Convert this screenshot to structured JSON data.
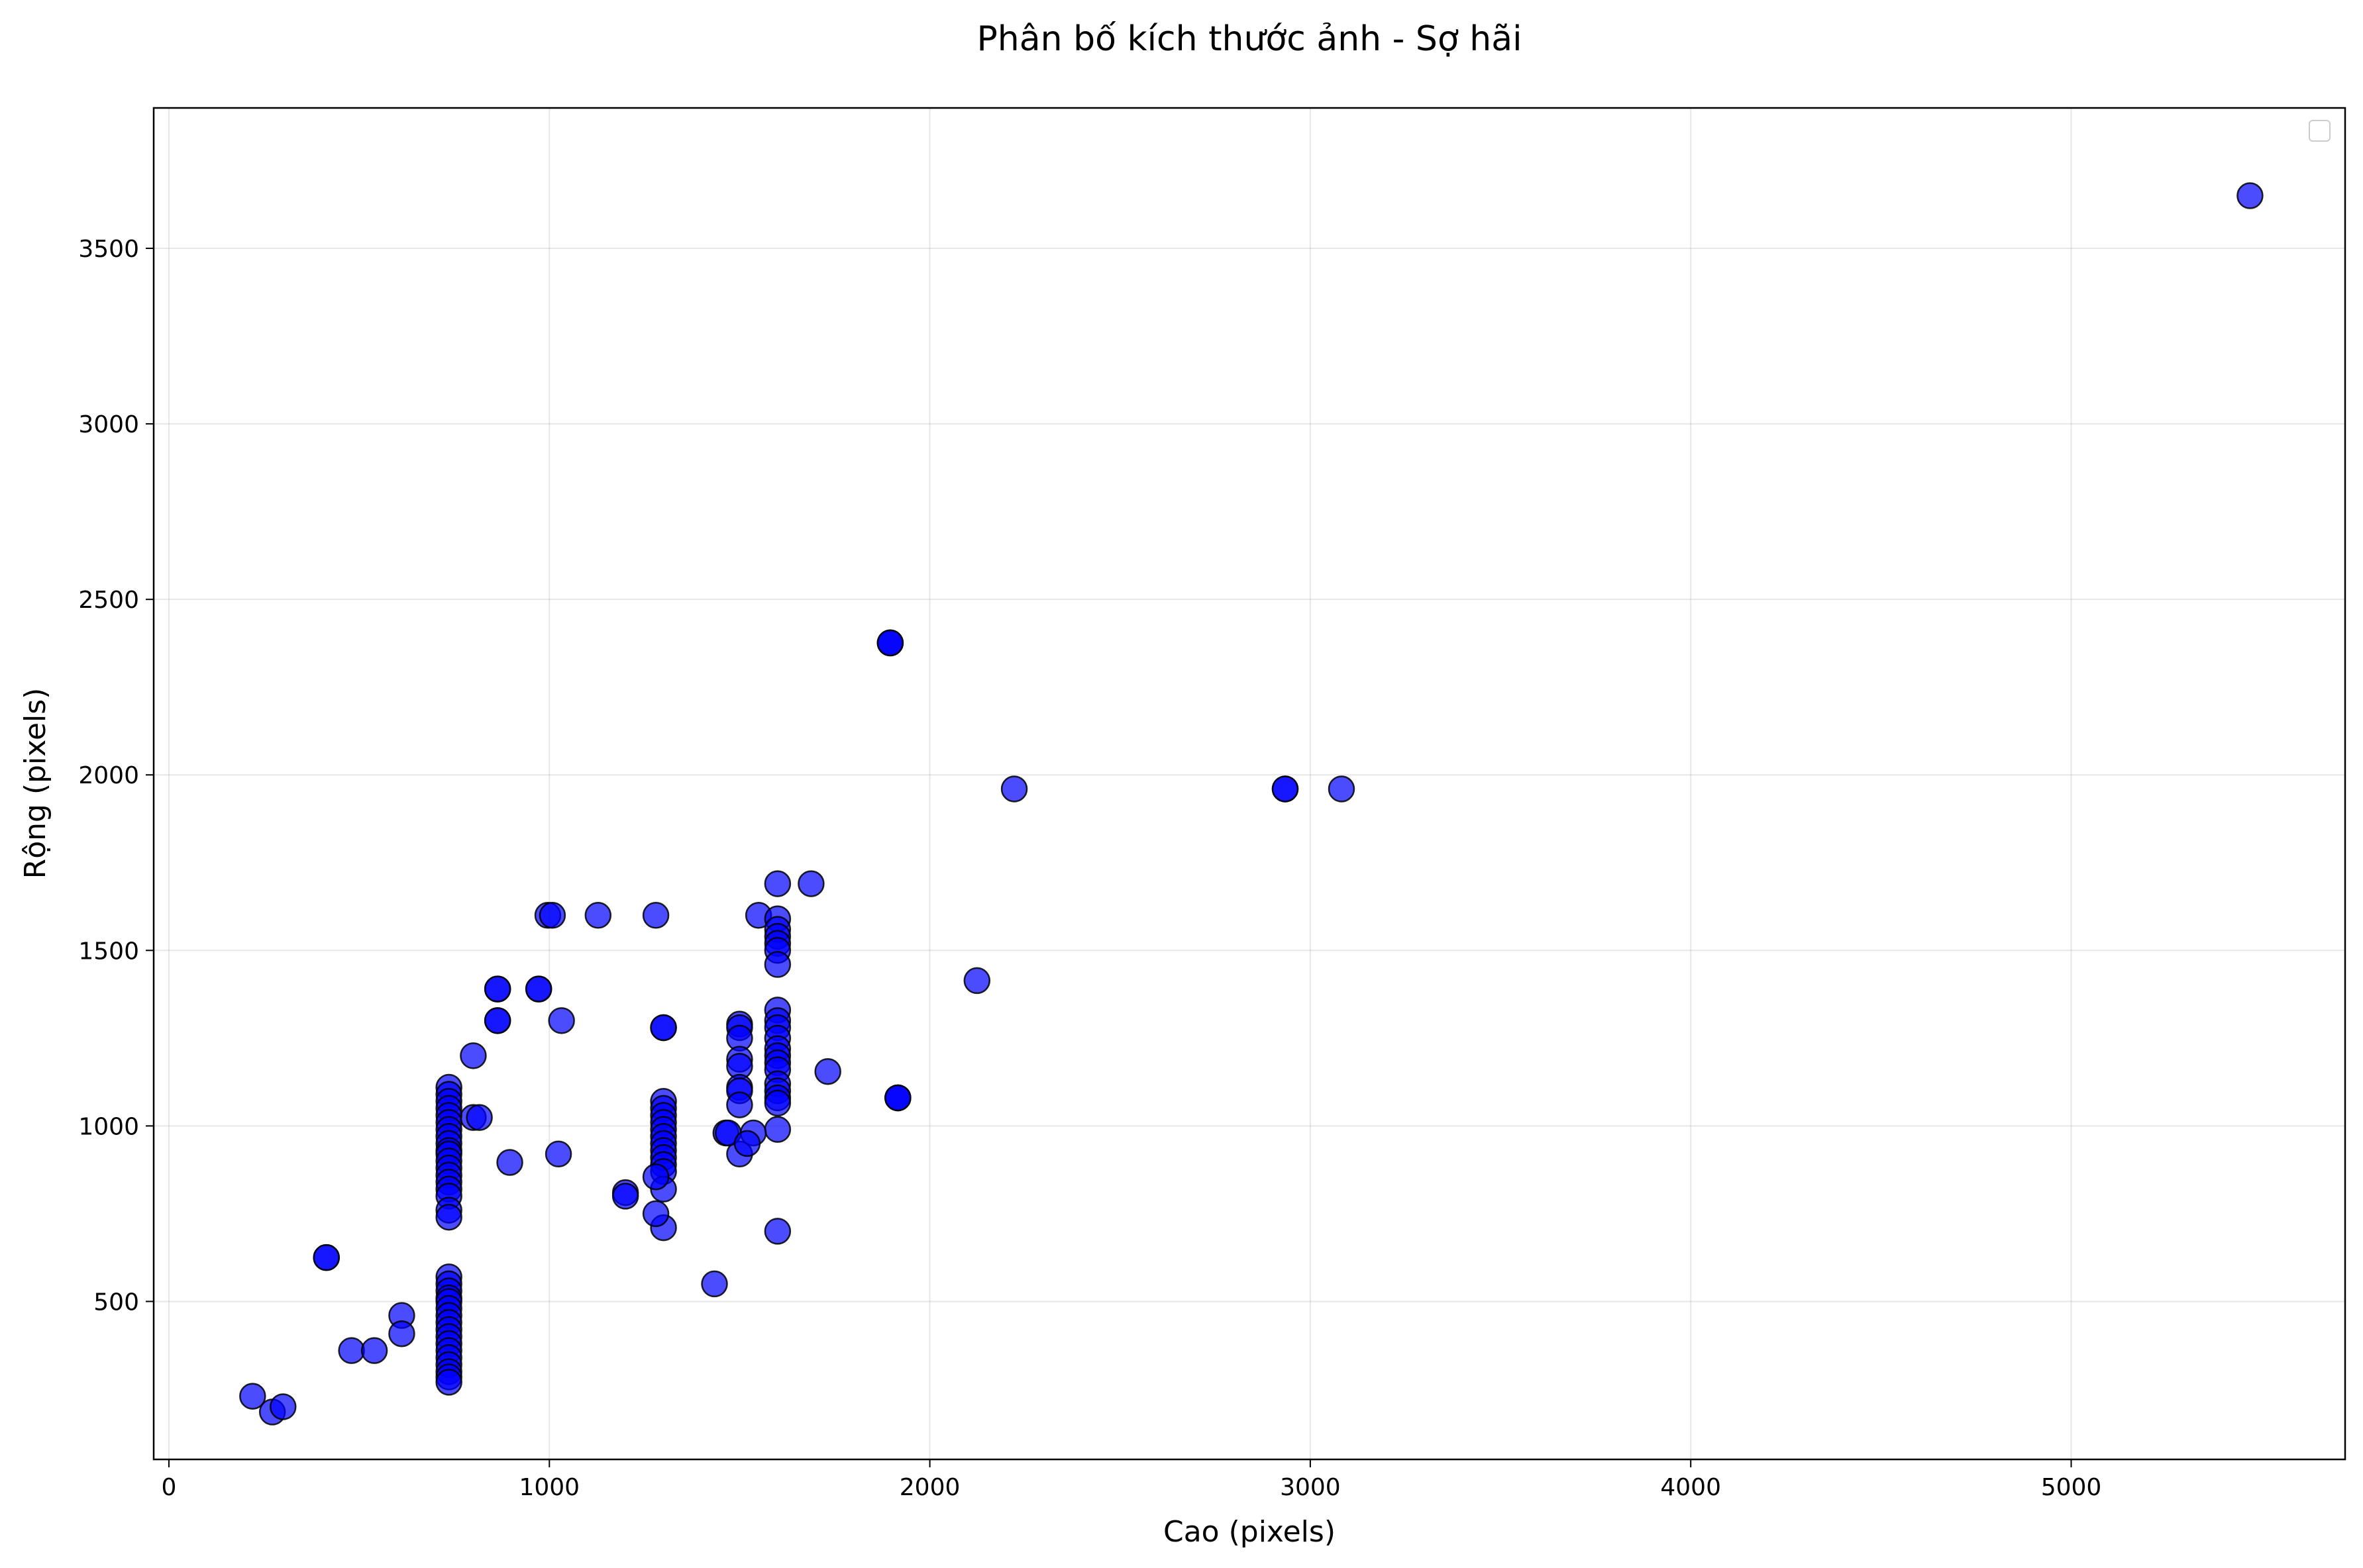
{
  "chart_data": {
    "type": "scatter",
    "title": "Phân bố kích thước ảnh - Sợ hãi",
    "xlabel": "Cao (pixels)",
    "ylabel": "Rộng (pixels)",
    "xlim": [
      -40,
      5720
    ],
    "ylim": [
      50,
      3900
    ],
    "xticks": [
      0,
      1000,
      2000,
      3000,
      4000,
      5000
    ],
    "yticks": [
      500,
      1000,
      1500,
      2000,
      2500,
      3000,
      3500
    ],
    "xtick_labels": [
      "0",
      "1000",
      "2000",
      "3000",
      "4000",
      "5000"
    ],
    "ytick_labels": [
      "500",
      "1000",
      "1500",
      "2000",
      "2500",
      "3000",
      "3500"
    ],
    "grid": true,
    "legend": {
      "location": "upper right",
      "entries": []
    },
    "colors": {
      "marker_fill": "#0000ff",
      "marker_alpha": 0.7,
      "marker_edge": "#000000"
    },
    "series": [
      {
        "points": [
          [
            5470,
            3650
          ],
          [
            1896,
            2376
          ],
          [
            1896,
            2376
          ],
          [
            1896,
            2376
          ],
          [
            2222,
            1960
          ],
          [
            2934,
            1960
          ],
          [
            2934,
            1960
          ],
          [
            3082,
            1960
          ],
          [
            2124,
            1414
          ],
          [
            1732,
            1155
          ],
          [
            1916,
            1080
          ],
          [
            1916,
            1080
          ],
          [
            1916,
            1080
          ],
          [
            1600,
            1690
          ],
          [
            1688,
            1690
          ],
          [
            996,
            1600
          ],
          [
            1008,
            1600
          ],
          [
            1128,
            1600
          ],
          [
            1280,
            1600
          ],
          [
            1550,
            1600
          ],
          [
            1600,
            1590
          ],
          [
            1600,
            1560
          ],
          [
            1600,
            1540
          ],
          [
            1600,
            1520
          ],
          [
            1600,
            1500
          ],
          [
            1600,
            1460
          ],
          [
            1600,
            1330
          ],
          [
            1600,
            1300
          ],
          [
            1600,
            1280
          ],
          [
            1600,
            1250
          ],
          [
            1600,
            1220
          ],
          [
            1600,
            1200
          ],
          [
            1600,
            1180
          ],
          [
            1600,
            1160
          ],
          [
            1600,
            1120
          ],
          [
            1600,
            1100
          ],
          [
            1600,
            1080
          ],
          [
            1600,
            1065
          ],
          [
            1600,
            990
          ],
          [
            1600,
            700
          ],
          [
            864,
            1390
          ],
          [
            864,
            1390
          ],
          [
            972,
            1390
          ],
          [
            972,
            1390
          ],
          [
            864,
            1300
          ],
          [
            864,
            1300
          ],
          [
            1032,
            1300
          ],
          [
            800,
            1200
          ],
          [
            1500,
            1290
          ],
          [
            1500,
            1280
          ],
          [
            1500,
            1250
          ],
          [
            1500,
            1190
          ],
          [
            1500,
            1170
          ],
          [
            1500,
            1110
          ],
          [
            1500,
            1100
          ],
          [
            1500,
            1060
          ],
          [
            1500,
            920
          ],
          [
            1464,
            980
          ],
          [
            1470,
            980
          ],
          [
            1536,
            980
          ],
          [
            1520,
            950
          ],
          [
            1300,
            1280
          ],
          [
            1300,
            1280
          ],
          [
            1300,
            1070
          ],
          [
            1300,
            1050
          ],
          [
            1300,
            1030
          ],
          [
            1300,
            1010
          ],
          [
            1300,
            990
          ],
          [
            1300,
            970
          ],
          [
            1300,
            950
          ],
          [
            1300,
            930
          ],
          [
            1300,
            910
          ],
          [
            1300,
            890
          ],
          [
            1300,
            870
          ],
          [
            1300,
            820
          ],
          [
            1300,
            710
          ],
          [
            1280,
            855
          ],
          [
            1280,
            750
          ],
          [
            1434,
            550
          ],
          [
            1200,
            810
          ],
          [
            1200,
            800
          ],
          [
            1024,
            920
          ],
          [
            896,
            896
          ],
          [
            800,
            1024
          ],
          [
            816,
            1024
          ],
          [
            736,
            1110
          ],
          [
            736,
            1090
          ],
          [
            736,
            1070
          ],
          [
            736,
            1050
          ],
          [
            736,
            1030
          ],
          [
            736,
            1010
          ],
          [
            736,
            990
          ],
          [
            736,
            970
          ],
          [
            736,
            950
          ],
          [
            736,
            930
          ],
          [
            736,
            920
          ],
          [
            736,
            900
          ],
          [
            736,
            880
          ],
          [
            736,
            860
          ],
          [
            736,
            840
          ],
          [
            736,
            820
          ],
          [
            736,
            800
          ],
          [
            736,
            760
          ],
          [
            736,
            740
          ],
          [
            736,
            570
          ],
          [
            736,
            550
          ],
          [
            736,
            530
          ],
          [
            736,
            510
          ],
          [
            736,
            500
          ],
          [
            736,
            480
          ],
          [
            736,
            460
          ],
          [
            736,
            440
          ],
          [
            736,
            420
          ],
          [
            736,
            400
          ],
          [
            736,
            380
          ],
          [
            736,
            360
          ],
          [
            736,
            340
          ],
          [
            736,
            320
          ],
          [
            736,
            300
          ],
          [
            736,
            285
          ],
          [
            736,
            270
          ],
          [
            414,
            625
          ],
          [
            414,
            625
          ],
          [
            612,
            460
          ],
          [
            612,
            408
          ],
          [
            480,
            360
          ],
          [
            540,
            360
          ],
          [
            220,
            230
          ],
          [
            272,
            185
          ],
          [
            300,
            200
          ]
        ]
      }
    ]
  }
}
